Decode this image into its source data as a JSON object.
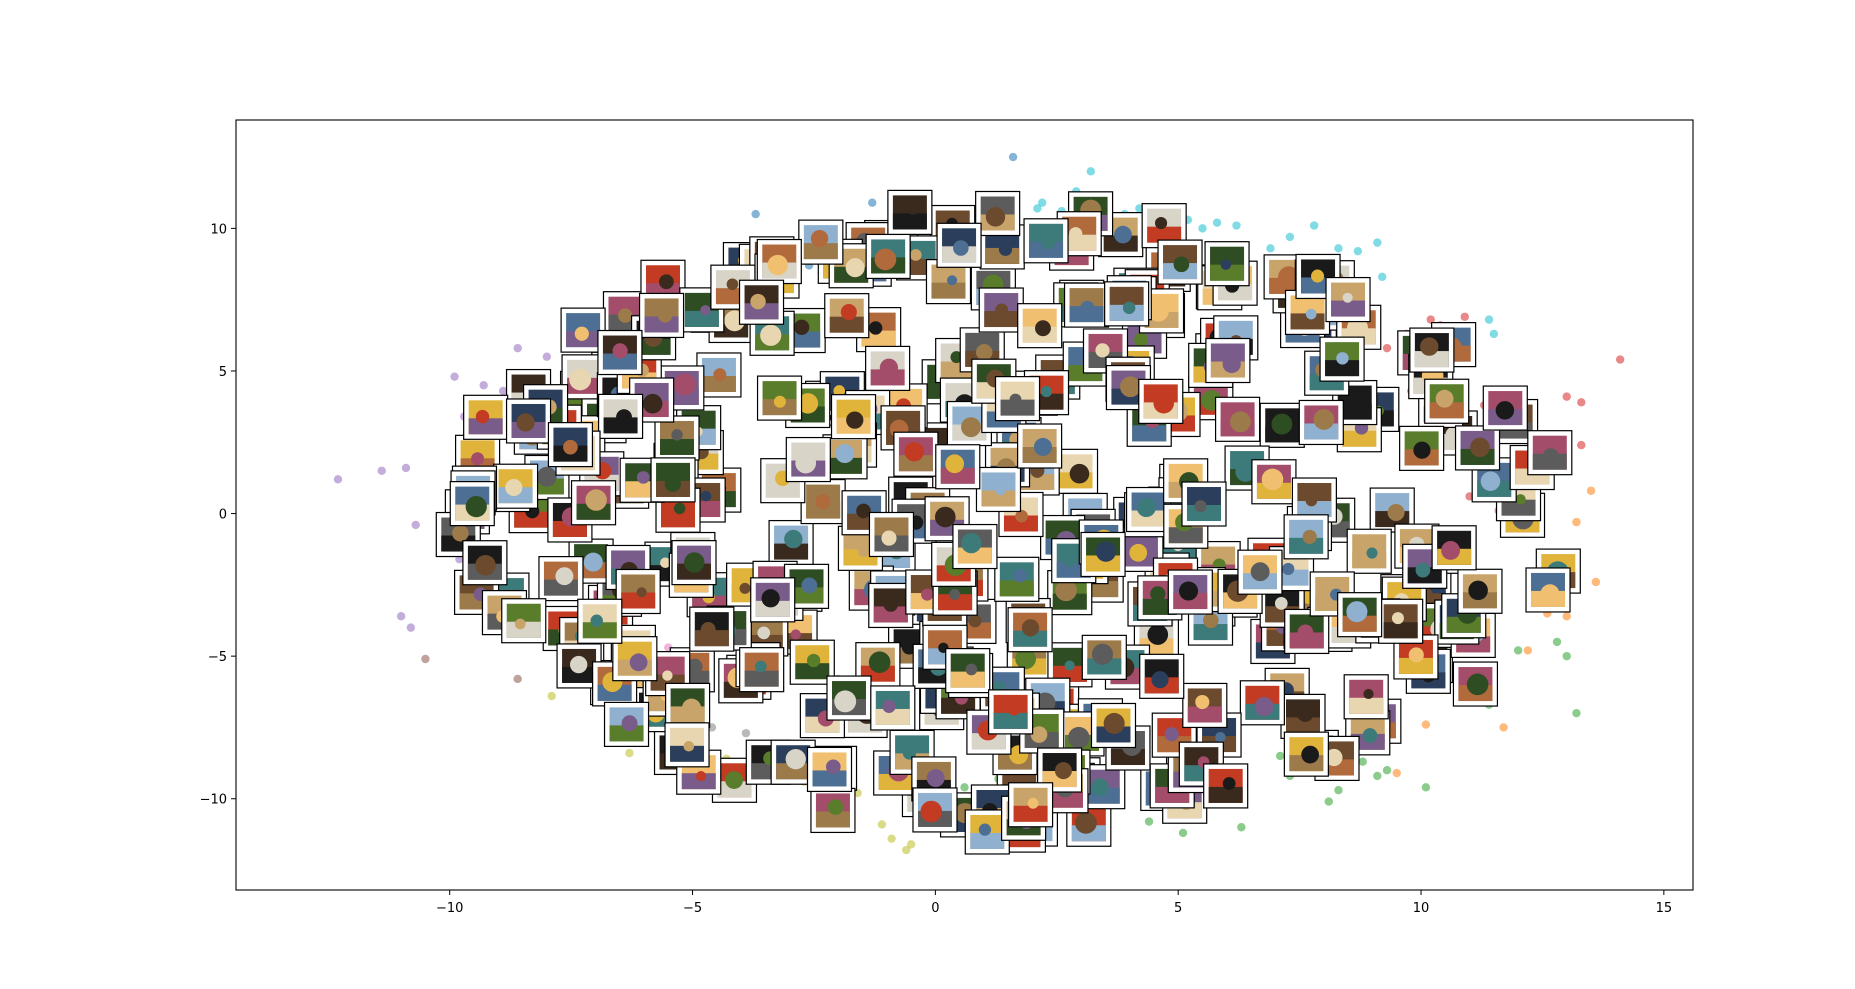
{
  "chart_data": {
    "type": "scatter",
    "title": "",
    "xlabel": "",
    "ylabel": "",
    "xlim": [
      -14.4,
      15.6
    ],
    "ylim": [
      -13.2,
      13.8
    ],
    "grid": false,
    "legend": "none",
    "x_ticks": [
      {
        "value": -10,
        "label": "−10"
      },
      {
        "value": -5,
        "label": "−5"
      },
      {
        "value": 0,
        "label": "0"
      },
      {
        "value": 5,
        "label": "5"
      },
      {
        "value": 10,
        "label": "10"
      },
      {
        "value": 15,
        "label": "15"
      }
    ],
    "y_ticks": [
      {
        "value": -10,
        "label": "−10"
      },
      {
        "value": -5,
        "label": "−5"
      },
      {
        "value": 0,
        "label": "0"
      },
      {
        "value": 5,
        "label": "5"
      },
      {
        "value": 10,
        "label": "10"
      }
    ],
    "series": [
      {
        "color": "#1f77b4",
        "points": [
          [
            1.6,
            12.5
          ],
          [
            -3.7,
            10.5
          ],
          [
            -1.3,
            10.9
          ],
          [
            -0.6,
            11.2
          ],
          [
            -3.3,
            8.7
          ],
          [
            -5.1,
            7.0
          ],
          [
            -3.9,
            7.4
          ],
          [
            -4.2,
            7.8
          ],
          [
            -3.5,
            7.9
          ],
          [
            -0.4,
            10.8
          ],
          [
            -2.6,
            8.7
          ],
          [
            -5.4,
            6.4
          ],
          [
            -3.6,
            8.6
          ]
        ]
      },
      {
        "color": "#ff7f0e",
        "points": [
          [
            13.5,
            0.8
          ],
          [
            13.6,
            -2.4
          ],
          [
            12.5,
            -2.3
          ],
          [
            12.2,
            -4.8
          ],
          [
            13.0,
            -3.6
          ],
          [
            13.2,
            -0.3
          ],
          [
            11.7,
            -7.5
          ],
          [
            12.9,
            -2.3
          ],
          [
            10.5,
            -5.8
          ],
          [
            11.3,
            -6.1
          ],
          [
            9.5,
            -7.2
          ],
          [
            12.6,
            -3.5
          ],
          [
            10.1,
            -7.4
          ],
          [
            9.5,
            -9.1
          ]
        ]
      },
      {
        "color": "#2ca02c",
        "points": [
          [
            13.2,
            -7.0
          ],
          [
            12.8,
            -4.5
          ],
          [
            12.0,
            -4.8
          ],
          [
            11.4,
            -6.7
          ],
          [
            10.1,
            -9.6
          ],
          [
            9.3,
            -9.0
          ],
          [
            8.8,
            -8.7
          ],
          [
            8.4,
            -9.0
          ],
          [
            9.1,
            -9.2
          ],
          [
            8.3,
            -9.7
          ],
          [
            8.1,
            -10.1
          ],
          [
            7.3,
            -9.2
          ],
          [
            7.1,
            -8.5
          ],
          [
            6.3,
            -11.0
          ],
          [
            5.1,
            -11.2
          ],
          [
            4.4,
            -10.8
          ],
          [
            3.7,
            -10.0
          ],
          [
            2.3,
            -10.9
          ],
          [
            1.5,
            -10.4
          ],
          [
            1.7,
            -10.9
          ],
          [
            1.3,
            -9.3
          ],
          [
            0.6,
            -9.6
          ],
          [
            10.5,
            -5.0
          ],
          [
            11.0,
            -3.8
          ],
          [
            13.0,
            -5.0
          ]
        ]
      },
      {
        "color": "#d62728",
        "points": [
          [
            14.1,
            5.4
          ],
          [
            13.3,
            2.4
          ],
          [
            12.8,
            2.6
          ],
          [
            13.3,
            3.9
          ],
          [
            13.0,
            4.1
          ],
          [
            11.3,
            3.8
          ],
          [
            10.8,
            4.5
          ],
          [
            10.4,
            4.5
          ],
          [
            10.9,
            3.7
          ],
          [
            10.6,
            3.6
          ],
          [
            10.8,
            3.2
          ],
          [
            10.3,
            3.7
          ],
          [
            11.6,
            1.4
          ],
          [
            12.0,
            1.3
          ],
          [
            11.0,
            0.6
          ],
          [
            10.9,
            6.9
          ],
          [
            10.4,
            6.6
          ],
          [
            10.2,
            6.8
          ],
          [
            9.7,
            6.3
          ],
          [
            9.3,
            5.8
          ],
          [
            9.8,
            4.3
          ],
          [
            12.0,
            -0.6
          ],
          [
            11.6,
            0.1
          ]
        ]
      },
      {
        "color": "#9467bd",
        "points": [
          [
            -12.3,
            1.2
          ],
          [
            -11.4,
            1.5
          ],
          [
            -10.9,
            1.6
          ],
          [
            -10.7,
            -0.4
          ],
          [
            -11.0,
            -3.6
          ],
          [
            -10.8,
            -4.0
          ],
          [
            -9.8,
            -1.6
          ],
          [
            -9.9,
            4.8
          ],
          [
            -9.7,
            3.4
          ],
          [
            -8.6,
            5.8
          ],
          [
            -8.0,
            5.5
          ],
          [
            -7.4,
            6.2
          ],
          [
            -7.1,
            5.3
          ],
          [
            -6.6,
            5.2
          ],
          [
            -8.3,
            4.8
          ],
          [
            -8.9,
            4.3
          ],
          [
            -9.3,
            4.5
          ]
        ]
      },
      {
        "color": "#8c564b",
        "points": [
          [
            -10.5,
            -5.1
          ],
          [
            -8.6,
            -5.8
          ],
          [
            -6.7,
            -5.7
          ],
          [
            -6.5,
            -6.2
          ]
        ]
      },
      {
        "color": "#e377c2",
        "points": [
          [
            -5.5,
            -4.7
          ],
          [
            -6.1,
            -5.1
          ],
          [
            -2.8,
            -5.6
          ],
          [
            -2.0,
            -5.8
          ],
          [
            -4.4,
            -4.4
          ],
          [
            -1.6,
            -6.6
          ]
        ]
      },
      {
        "color": "#7f7f7f",
        "points": [
          [
            -5.5,
            -7.8
          ],
          [
            -5.2,
            -7.7
          ],
          [
            -4.6,
            -7.5
          ],
          [
            -3.9,
            -7.7
          ],
          [
            -3.7,
            -5.6
          ],
          [
            -2.2,
            -8.9
          ],
          [
            -2.0,
            -9.3
          ]
        ]
      },
      {
        "color": "#bcbd22",
        "points": [
          [
            -7.9,
            -6.4
          ],
          [
            -6.6,
            -6.7
          ],
          [
            -6.4,
            -7.6
          ],
          [
            -6.3,
            -8.4
          ],
          [
            -5.1,
            -8.3
          ],
          [
            -4.6,
            -8.5
          ],
          [
            -5.3,
            -8.6
          ],
          [
            -4.3,
            -8.6
          ],
          [
            -3.8,
            -8.9
          ],
          [
            -3.5,
            -8.8
          ],
          [
            -2.7,
            -9.4
          ],
          [
            -2.9,
            -9.3
          ],
          [
            -2.3,
            -9.4
          ],
          [
            -1.6,
            -9.8
          ],
          [
            -0.5,
            -11.6
          ],
          [
            -0.6,
            -11.8
          ],
          [
            -1.1,
            -10.9
          ],
          [
            -0.9,
            -11.4
          ],
          [
            1.2,
            -11.5
          ],
          [
            2.3,
            -11.1
          ],
          [
            0.5,
            -10.2
          ]
        ]
      },
      {
        "color": "#17becf",
        "points": [
          [
            2.2,
            10.9
          ],
          [
            3.2,
            12.0
          ],
          [
            2.9,
            11.3
          ],
          [
            2.9,
            10.7
          ],
          [
            2.6,
            10.6
          ],
          [
            2.1,
            10.7
          ],
          [
            1.9,
            10.2
          ],
          [
            2.4,
            10.2
          ],
          [
            3.0,
            10.3
          ],
          [
            0.2,
            10.1
          ],
          [
            0.0,
            10.0
          ],
          [
            -0.8,
            10.6
          ],
          [
            4.2,
            10.7
          ],
          [
            5.5,
            10.0
          ],
          [
            5.8,
            10.2
          ],
          [
            6.3,
            9.4
          ],
          [
            6.9,
            9.3
          ],
          [
            7.3,
            9.7
          ],
          [
            7.8,
            10.1
          ],
          [
            8.3,
            9.3
          ],
          [
            8.7,
            9.2
          ],
          [
            9.1,
            9.5
          ],
          [
            9.2,
            8.3
          ],
          [
            8.6,
            7.9
          ],
          [
            11.4,
            6.8
          ],
          [
            11.5,
            6.3
          ],
          [
            7.9,
            8.8
          ],
          [
            5.2,
            10.3
          ],
          [
            6.2,
            10.1
          ],
          [
            3.9,
            10.5
          ],
          [
            1.1,
            10.2
          ]
        ]
      }
    ],
    "image_thumbnails": {
      "count": 420,
      "style": "white-bordered photo thumbnails with black frame"
    }
  }
}
